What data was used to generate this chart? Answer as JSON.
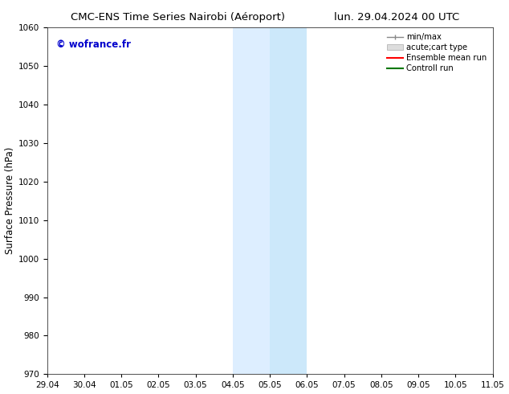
{
  "title_left": "CMC-ENS Time Series Nairobi (Aéroport)",
  "title_right": "lun. 29.04.2024 00 UTC",
  "ylabel": "Surface Pressure (hPa)",
  "ymin": 970,
  "ymax": 1060,
  "yticks": [
    970,
    980,
    990,
    1000,
    1010,
    1020,
    1030,
    1040,
    1050,
    1060
  ],
  "xtick_labels": [
    "29.04",
    "30.04",
    "01.05",
    "02.05",
    "03.05",
    "04.05",
    "05.05",
    "06.05",
    "07.05",
    "08.05",
    "09.05",
    "10.05",
    "11.05"
  ],
  "shaded_region_1": [
    5,
    6
  ],
  "shaded_region_2": [
    6,
    7
  ],
  "shaded_color_1": "#ddeeff",
  "shaded_color_2": "#cce8fa",
  "background_color": "#ffffff",
  "watermark_text": "© wofrance.fr",
  "watermark_color": "#0000cc",
  "legend_entries": [
    {
      "label": "min/max",
      "color": "#999999",
      "style": "minmax"
    },
    {
      "label": "acute;cart type",
      "color": "#cccccc",
      "style": "fill"
    },
    {
      "label": "Ensemble mean run",
      "color": "#ff0000",
      "style": "line"
    },
    {
      "label": "Controll run",
      "color": "#007700",
      "style": "line"
    }
  ],
  "spine_color": "#888888",
  "tick_color": "#555555",
  "fig_width": 6.34,
  "fig_height": 4.9,
  "dpi": 100
}
